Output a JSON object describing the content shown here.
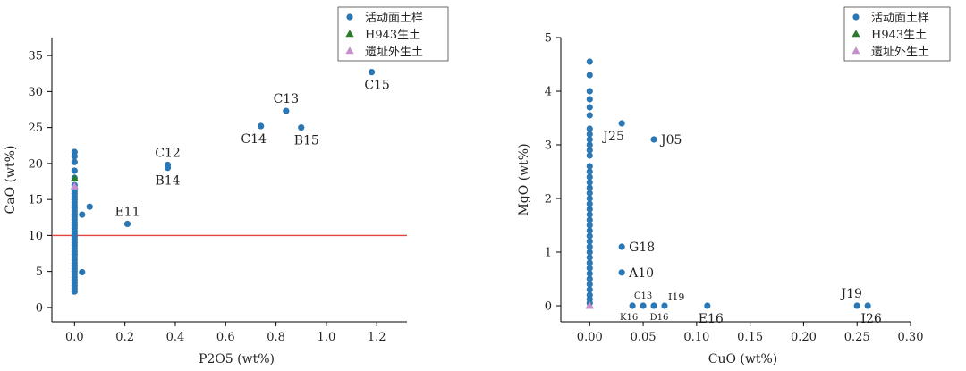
{
  "chart_data": [
    {
      "type": "scatter",
      "xlabel": "P2O5 (wt%)",
      "ylabel": "CaO (wt%)",
      "xlim": [
        -0.09,
        1.32
      ],
      "ylim": [
        -2,
        37.5
      ],
      "xticks": [
        0.0,
        0.2,
        0.4,
        0.6,
        0.8,
        1.0,
        1.2
      ],
      "xtick_labels": [
        "0.0",
        "0.2",
        "0.4",
        "0.6",
        "0.8",
        "1.0",
        "1.2"
      ],
      "yticks": [
        0,
        5,
        10,
        15,
        20,
        25,
        30,
        35
      ],
      "ytick_labels": [
        "0",
        "5",
        "10",
        "15",
        "20",
        "25",
        "30",
        "35"
      ],
      "reference_line": {
        "y": 10,
        "color": "#e0443c"
      },
      "legend": {
        "placement": "top-right",
        "entries": [
          {
            "label": "活动面土样",
            "marker": "circle",
            "color": "#2b77b4"
          },
          {
            "label": "H943生土",
            "marker": "triangle",
            "color": "#2a7a2a"
          },
          {
            "label": "遗址外生土",
            "marker": "triangle",
            "color": "#c78fcd"
          }
        ]
      },
      "series": [
        {
          "name": "活动面土样",
          "marker": "circle",
          "color": "#2b77b4",
          "points": [
            [
              0,
              2.2
            ],
            [
              0,
              2.6
            ],
            [
              0,
              3.0
            ],
            [
              0,
              3.4
            ],
            [
              0,
              3.8
            ],
            [
              0,
              4.2
            ],
            [
              0,
              4.6
            ],
            [
              0,
              5.0
            ],
            [
              0,
              5.4
            ],
            [
              0,
              5.8
            ],
            [
              0,
              6.2
            ],
            [
              0,
              6.6
            ],
            [
              0,
              7.0
            ],
            [
              0,
              7.4
            ],
            [
              0,
              7.8
            ],
            [
              0,
              8.2
            ],
            [
              0,
              8.6
            ],
            [
              0,
              9.0
            ],
            [
              0,
              9.4
            ],
            [
              0,
              9.8
            ],
            [
              0,
              10.2
            ],
            [
              0,
              10.6
            ],
            [
              0,
              11.0
            ],
            [
              0,
              11.4
            ],
            [
              0,
              11.8
            ],
            [
              0,
              12.2
            ],
            [
              0,
              12.6
            ],
            [
              0,
              13.0
            ],
            [
              0,
              13.4
            ],
            [
              0,
              13.8
            ],
            [
              0,
              14.2
            ],
            [
              0,
              14.6
            ],
            [
              0,
              15.0
            ],
            [
              0,
              15.4
            ],
            [
              0,
              15.8
            ],
            [
              0,
              16.2
            ],
            [
              0,
              16.6
            ],
            [
              0,
              17.0
            ],
            [
              0,
              18.0
            ],
            [
              0,
              19.0
            ],
            [
              0,
              20.2
            ],
            [
              0,
              21.0
            ],
            [
              0,
              21.6
            ],
            [
              0.03,
              4.9
            ],
            [
              0.03,
              12.9
            ],
            [
              0.06,
              14.0
            ],
            [
              0.21,
              11.6
            ],
            [
              0.37,
              19.4
            ],
            [
              0.37,
              19.8
            ],
            [
              0.74,
              25.2
            ],
            [
              0.84,
              27.3
            ],
            [
              0.9,
              25.0
            ],
            [
              1.18,
              32.7
            ]
          ]
        },
        {
          "name": "H943生土",
          "marker": "triangle",
          "color": "#2a7a2a",
          "points": [
            [
              0,
              17.9
            ]
          ]
        },
        {
          "name": "遗址外生土",
          "marker": "triangle",
          "color": "#c78fcd",
          "points": [
            [
              0,
              16.8
            ]
          ]
        }
      ],
      "annotations": [
        {
          "text": "C15",
          "x": 1.18,
          "y": 32.7,
          "pos": "below"
        },
        {
          "text": "C13",
          "x": 0.84,
          "y": 27.3,
          "pos": "above"
        },
        {
          "text": "C14",
          "x": 0.74,
          "y": 25.2,
          "pos": "below-left"
        },
        {
          "text": "B15",
          "x": 0.9,
          "y": 25.0,
          "pos": "below"
        },
        {
          "text": "C12",
          "x": 0.37,
          "y": 19.8,
          "pos": "above"
        },
        {
          "text": "B14",
          "x": 0.37,
          "y": 19.4,
          "pos": "below"
        },
        {
          "text": "E11",
          "x": 0.21,
          "y": 11.6,
          "pos": "above"
        }
      ]
    },
    {
      "type": "scatter",
      "xlabel": "CuO (wt%)",
      "ylabel": "MgO (wt%)",
      "xlim": [
        -0.027,
        0.3
      ],
      "ylim": [
        -0.3,
        5.0
      ],
      "xticks": [
        0.0,
        0.05,
        0.1,
        0.15,
        0.2,
        0.25,
        0.3
      ],
      "xtick_labels": [
        "0.00",
        "0.05",
        "0.10",
        "0.15",
        "0.20",
        "0.25",
        "0.30"
      ],
      "yticks": [
        0,
        1,
        2,
        3,
        4,
        5
      ],
      "ytick_labels": [
        "0",
        "1",
        "2",
        "3",
        "4",
        "5"
      ],
      "legend": {
        "placement": "top-right",
        "entries": [
          {
            "label": "活动面土样",
            "marker": "circle",
            "color": "#2b77b4"
          },
          {
            "label": "H943生土",
            "marker": "triangle",
            "color": "#2a7a2a"
          },
          {
            "label": "遗址外生土",
            "marker": "triangle",
            "color": "#c78fcd"
          }
        ]
      },
      "series": [
        {
          "name": "活动面土样",
          "marker": "circle",
          "color": "#2b77b4",
          "points": [
            [
              0,
              0.05
            ],
            [
              0,
              0.12
            ],
            [
              0,
              0.2
            ],
            [
              0,
              0.3
            ],
            [
              0,
              0.4
            ],
            [
              0,
              0.5
            ],
            [
              0,
              0.6
            ],
            [
              0,
              0.7
            ],
            [
              0,
              0.8
            ],
            [
              0,
              0.9
            ],
            [
              0,
              1.0
            ],
            [
              0,
              1.1
            ],
            [
              0,
              1.2
            ],
            [
              0,
              1.3
            ],
            [
              0,
              1.4
            ],
            [
              0,
              1.5
            ],
            [
              0,
              1.6
            ],
            [
              0,
              1.7
            ],
            [
              0,
              1.8
            ],
            [
              0,
              1.9
            ],
            [
              0,
              2.0
            ],
            [
              0,
              2.1
            ],
            [
              0,
              2.2
            ],
            [
              0,
              2.3
            ],
            [
              0,
              2.4
            ],
            [
              0,
              2.5
            ],
            [
              0,
              2.6
            ],
            [
              0,
              2.8
            ],
            [
              0,
              2.9
            ],
            [
              0,
              3.0
            ],
            [
              0,
              3.1
            ],
            [
              0,
              3.2
            ],
            [
              0,
              3.3
            ],
            [
              0,
              3.55
            ],
            [
              0,
              3.7
            ],
            [
              0,
              3.85
            ],
            [
              0,
              4.0
            ],
            [
              0,
              4.3
            ],
            [
              0,
              4.55
            ],
            [
              0.03,
              3.4
            ],
            [
              0.06,
              3.1
            ],
            [
              0.03,
              1.1
            ],
            [
              0.03,
              0.62
            ],
            [
              0.04,
              0.0
            ],
            [
              0.05,
              0.0
            ],
            [
              0.06,
              0.0
            ],
            [
              0.07,
              0.0
            ],
            [
              0.11,
              0.0
            ],
            [
              0.25,
              0.0
            ],
            [
              0.26,
              0.0
            ]
          ]
        },
        {
          "name": "H943生土",
          "marker": "triangle",
          "color": "#2a7a2a",
          "points": [
            [
              0,
              0.0
            ]
          ]
        },
        {
          "name": "遗址外生土",
          "marker": "triangle",
          "color": "#c78fcd",
          "points": [
            [
              0,
              0.0
            ]
          ]
        }
      ],
      "annotations": [
        {
          "text": "J25",
          "x": 0.03,
          "y": 3.4,
          "pos": "below-left"
        },
        {
          "text": "J05",
          "x": 0.06,
          "y": 3.1,
          "pos": "right"
        },
        {
          "text": "G18",
          "x": 0.03,
          "y": 1.1,
          "pos": "right"
        },
        {
          "text": "A10",
          "x": 0.03,
          "y": 0.62,
          "pos": "right"
        },
        {
          "text": "C13",
          "x": 0.05,
          "y": 0.0,
          "pos": "above-small"
        },
        {
          "text": "I19",
          "x": 0.07,
          "y": 0.0,
          "pos": "above-right"
        },
        {
          "text": "K16",
          "x": 0.04,
          "y": 0.0,
          "pos": "below-left-small"
        },
        {
          "text": "D16",
          "x": 0.06,
          "y": 0.0,
          "pos": "below-small"
        },
        {
          "text": "E16",
          "x": 0.11,
          "y": 0.0,
          "pos": "below"
        },
        {
          "text": "J19",
          "x": 0.25,
          "y": 0.0,
          "pos": "above-left"
        },
        {
          "text": "I26",
          "x": 0.26,
          "y": 0.0,
          "pos": "below"
        }
      ]
    }
  ]
}
